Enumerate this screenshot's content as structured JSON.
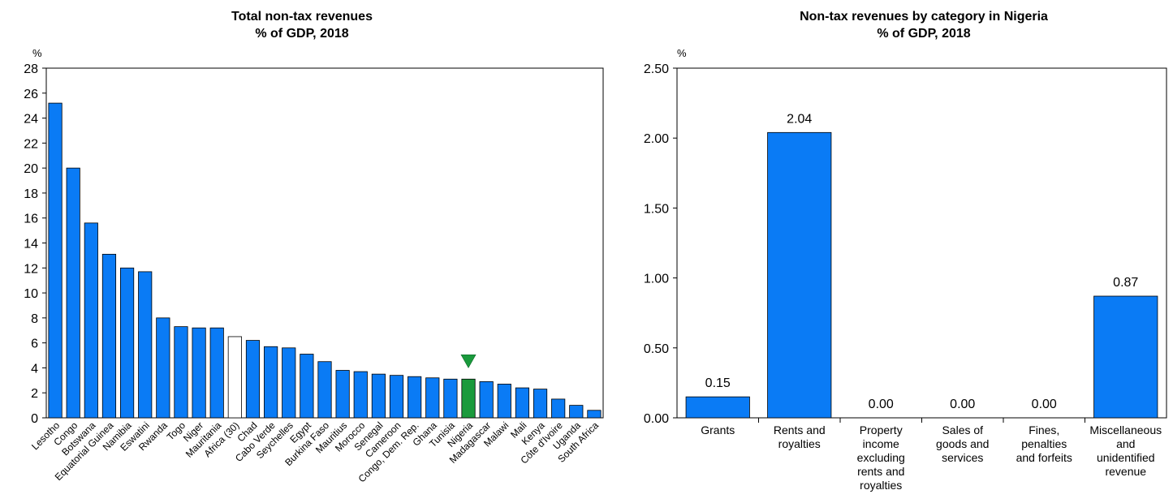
{
  "chart_data": [
    {
      "type": "bar",
      "title": "Total non-tax revenues",
      "subtitle": "% of GDP, 2018",
      "ylabel": "%",
      "ylim": [
        0,
        28
      ],
      "yticks": [
        0,
        2,
        4,
        6,
        8,
        10,
        12,
        14,
        16,
        18,
        20,
        22,
        24,
        26,
        28
      ],
      "categories": [
        "Lesotho",
        "Congo",
        "Botswana",
        "Equatorial Guinea",
        "Namibia",
        "Eswatini",
        "Rwanda",
        "Togo",
        "Niger",
        "Mauritania",
        "Africa (30)",
        "Chad",
        "Cabo Verde",
        "Seychelles",
        "Egypt",
        "Burkina Faso",
        "Mauritius",
        "Morocco",
        "Senegal",
        "Cameroon",
        "Congo, Dem. Rep.",
        "Ghana",
        "Tunisia",
        "Nigeria",
        "Madagascar",
        "Malawi",
        "Mali",
        "Kenya",
        "Côte d'Ivoire",
        "Uganda",
        "South Africa"
      ],
      "values": [
        25.2,
        20.0,
        15.6,
        13.1,
        12.0,
        11.7,
        8.0,
        7.3,
        7.2,
        7.2,
        6.5,
        6.2,
        5.7,
        5.6,
        5.1,
        4.5,
        3.8,
        3.7,
        3.5,
        3.4,
        3.3,
        3.2,
        3.1,
        3.1,
        2.9,
        2.7,
        2.4,
        2.3,
        1.5,
        1.0,
        0.6
      ],
      "highlight": {
        "Africa (30)": "outline",
        "Nigeria": "green-with-marker"
      },
      "colors": {
        "bar": "#0a7bf5",
        "nigeria": "#1a9a3c",
        "africa_fill": "#ffffff",
        "outline": "#000000",
        "marker": "#1a9a3c"
      }
    },
    {
      "type": "bar",
      "title": "Non-tax revenues by category in Nigeria",
      "subtitle": "% of GDP, 2018",
      "ylabel": "%",
      "ylim": [
        0,
        2.5
      ],
      "yticks": [
        "0.00",
        "0.50",
        "1.00",
        "1.50",
        "2.00",
        "2.50"
      ],
      "categories": [
        [
          "Grants"
        ],
        [
          "Rents and",
          "royalties"
        ],
        [
          "Property",
          "income",
          "excluding",
          "rents and",
          "royalties"
        ],
        [
          "Sales of",
          "goods and",
          "services"
        ],
        [
          "Fines,",
          "penalties",
          "and forfeits"
        ],
        [
          "Miscellaneous",
          "and",
          "unidentified",
          "revenue"
        ]
      ],
      "values": [
        0.15,
        2.04,
        0.0,
        0.0,
        0.0,
        0.87
      ],
      "data_labels": [
        "0.15",
        "2.04",
        "0.00",
        "0.00",
        "0.00",
        "0.87"
      ],
      "colors": {
        "bar": "#0a7bf5",
        "outline": "#000000"
      }
    }
  ]
}
